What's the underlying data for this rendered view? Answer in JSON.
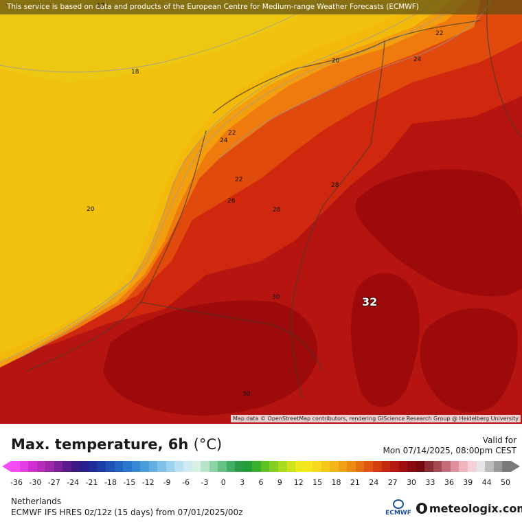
{
  "map": {
    "disclaimer": "This service is based on data and products of the European Centre for Medium-range Weather Forecasts (ECMWF)",
    "attribution": "Map data © OpenStreetMap contributors, rendering GIScience Research Group @ Heidelberg University",
    "contour_labels": [
      "17",
      "18",
      "20",
      "22",
      "24",
      "20",
      "22",
      "24",
      "22",
      "26",
      "28",
      "28",
      "30",
      "30"
    ],
    "max_value": "32",
    "colors": {
      "t17": "#eec712",
      "t18": "#f0c20f",
      "t20": "#f3b90b",
      "t22": "#f29e0e",
      "t24": "#ef7a0e",
      "t26": "#e14a0d",
      "t28": "#d0280e",
      "t30": "#b51410",
      "t32": "#9c0a0c"
    }
  },
  "legend": {
    "title": "Max. temperature, 6h",
    "unit": "(°C)",
    "valid_for_label": "Valid for",
    "valid_date": "Mon 07/14/2025, 08:00pm CEST",
    "ticks": [
      "-36",
      "-30",
      "-27",
      "-24",
      "-21",
      "-18",
      "-15",
      "-12",
      "-9",
      "-6",
      "-3",
      "0",
      "3",
      "6",
      "9",
      "12",
      "15",
      "18",
      "21",
      "24",
      "27",
      "30",
      "33",
      "36",
      "39",
      "44",
      "50"
    ],
    "colorbar_colors": [
      "#f54df6",
      "#e33de4",
      "#d12fd2",
      "#b82bbd",
      "#9c27a8",
      "#7a2199",
      "#5b1b8c",
      "#3d1a86",
      "#2a1f8f",
      "#202c9a",
      "#1d3ea8",
      "#1f51b6",
      "#2264c2",
      "#2a78cc",
      "#368ad5",
      "#4a9ddc",
      "#62b0e3",
      "#7ec2ea",
      "#9ad2f0",
      "#b6e0f3",
      "#cfeaf2",
      "#d8efe6",
      "#b8e4c8",
      "#8ed3a5",
      "#64c283",
      "#42b064",
      "#2a9c4a",
      "#22a036",
      "#39b02a",
      "#5ec124",
      "#85cf22",
      "#abdb20",
      "#d1e31f",
      "#ecea1f",
      "#f6e51f",
      "#f8d81e",
      "#f6c81c",
      "#f3b61a",
      "#f0a016",
      "#ec8a12",
      "#e6700f",
      "#df560d",
      "#d43d0d",
      "#c62a0e",
      "#b51a10",
      "#a00f10",
      "#8a0a10",
      "#760810",
      "#8a2d34",
      "#a44a55",
      "#c36c78",
      "#df909c",
      "#f0b4bd",
      "#f2d2d6",
      "#e6e6e6",
      "#bdbdbd",
      "#9a9a9a",
      "#7a7a7a"
    ]
  },
  "footer": {
    "region": "Netherlands",
    "model_info": "ECMWF IFS HRES 0z/12z (15 days) from 07/01/2025/00z",
    "ecmwf_logo_text": "ECMWF",
    "meteologix_logo_text": "meteologix.com"
  }
}
